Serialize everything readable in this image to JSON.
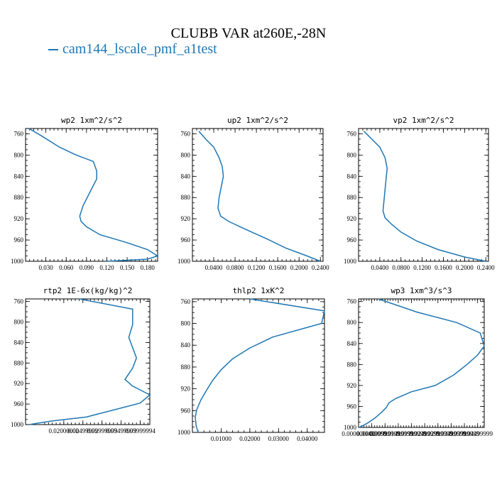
{
  "figure": {
    "title": "CLUBB VAR at260E,-28N",
    "legend": "cam144_lscale_pmf_a1test",
    "line_color": "#1f77b4"
  },
  "chart_data": [
    {
      "type": "line",
      "title": "wp2  1xm^2/s^2",
      "xlim": [
        0.0,
        0.195
      ],
      "ylim": [
        1000,
        750
      ],
      "xticks": [
        0.03,
        0.06,
        0.09,
        0.12,
        0.15,
        0.18
      ],
      "xtick_labels": [
        "0.030",
        "0.060",
        "0.090",
        "0.120",
        "0.150",
        "0.180"
      ],
      "yticks": [
        760,
        800,
        840,
        880,
        920,
        960,
        1000
      ],
      "ytick_labels": [
        "760",
        "800",
        "840",
        "880",
        "920",
        "960",
        "1000"
      ],
      "x": [
        0.005,
        0.025,
        0.05,
        0.075,
        0.1,
        0.105,
        0.105,
        0.095,
        0.085,
        0.08,
        0.082,
        0.09,
        0.11,
        0.15,
        0.18,
        0.195,
        0.18,
        0.12
      ],
      "y": [
        750,
        765,
        785,
        800,
        812,
        830,
        845,
        870,
        895,
        915,
        925,
        935,
        950,
        965,
        978,
        990,
        996,
        1000
      ]
    },
    {
      "type": "line",
      "title": "up2  1xm^2/s^2",
      "xlim": [
        0.0,
        0.245
      ],
      "ylim": [
        1000,
        750
      ],
      "xticks": [
        0.04,
        0.08,
        0.12,
        0.16,
        0.2,
        0.24
      ],
      "xtick_labels": [
        "0.0400",
        "0.0800",
        "0.1200",
        "0.1600",
        "0.2000",
        "0.2400"
      ],
      "yticks": [
        760,
        800,
        840,
        880,
        920,
        960,
        1000
      ],
      "ytick_labels": [
        "760",
        "800",
        "840",
        "880",
        "920",
        "960",
        "1000"
      ],
      "x": [
        0.012,
        0.025,
        0.04,
        0.05,
        0.056,
        0.058,
        0.054,
        0.05,
        0.048,
        0.053,
        0.068,
        0.1,
        0.14,
        0.175,
        0.215,
        0.24
      ],
      "y": [
        755,
        770,
        785,
        805,
        822,
        840,
        860,
        880,
        900,
        915,
        925,
        940,
        958,
        975,
        990,
        1000
      ]
    },
    {
      "type": "line",
      "title": "vp2  1xm^2/s^2",
      "xlim": [
        0.0,
        0.245
      ],
      "ylim": [
        1000,
        750
      ],
      "xticks": [
        0.04,
        0.08,
        0.12,
        0.16,
        0.2,
        0.24
      ],
      "xtick_labels": [
        "0.0400",
        "0.0800",
        "0.1200",
        "0.1600",
        "0.2000",
        "0.2400"
      ],
      "yticks": [
        760,
        800,
        840,
        880,
        920,
        960,
        1000
      ],
      "ytick_labels": [
        "760",
        "800",
        "840",
        "880",
        "920",
        "960",
        "1000"
      ],
      "x": [
        0.01,
        0.025,
        0.04,
        0.05,
        0.054,
        0.052,
        0.05,
        0.048,
        0.046,
        0.05,
        0.062,
        0.08,
        0.11,
        0.15,
        0.2,
        0.24
      ],
      "y": [
        755,
        770,
        785,
        805,
        825,
        845,
        865,
        885,
        905,
        918,
        930,
        945,
        962,
        978,
        992,
        1000
      ]
    },
    {
      "type": "line",
      "title": "rtp2  1E-6x(kg/kg)^2",
      "xlim": [
        0.01,
        0.0425
      ],
      "ylim": [
        1000,
        755
      ],
      "xticks": [
        0.02,
        0.025,
        0.03,
        0.035,
        0.04
      ],
      "xtick_labels": [
        "0.02000000",
        "0.02499999",
        "0.02999999",
        "0.03499999",
        "0.03999994"
      ],
      "yticks": [
        760,
        800,
        840,
        880,
        920,
        960,
        1000
      ],
      "ytick_labels": [
        "760",
        "800",
        "840",
        "880",
        "920",
        "960",
        "1000"
      ],
      "x": [
        0.024,
        0.038,
        0.038,
        0.037,
        0.038,
        0.039,
        0.038,
        0.036,
        0.038,
        0.0425,
        0.04,
        0.026,
        0.017,
        0.0135,
        0.011
      ],
      "y": [
        755,
        775,
        805,
        830,
        850,
        870,
        890,
        912,
        925,
        942,
        958,
        985,
        993,
        997,
        1000
      ]
    },
    {
      "type": "line",
      "title": "thlp2  1xK^2",
      "xlim": [
        0.0,
        0.046
      ],
      "ylim": [
        1000,
        755
      ],
      "xticks": [
        0.01,
        0.02,
        0.03,
        0.04
      ],
      "xtick_labels": [
        "0.01000",
        "0.02000",
        "0.03000",
        "0.04000"
      ],
      "yticks": [
        760,
        800,
        840,
        880,
        920,
        960,
        1000
      ],
      "ytick_labels": [
        "760",
        "800",
        "840",
        "880",
        "920",
        "960",
        "1000"
      ],
      "x": [
        0.02,
        0.046,
        0.045,
        0.028,
        0.02,
        0.014,
        0.01,
        0.007,
        0.005,
        0.003,
        0.0015,
        0.001,
        0.0013,
        0.002
      ],
      "y": [
        755,
        777,
        800,
        825,
        845,
        865,
        885,
        905,
        922,
        940,
        958,
        973,
        988,
        1000
      ]
    },
    {
      "type": "line",
      "title": "wp3  1xm^3/s^3",
      "xlim": [
        0.0,
        0.0475
      ],
      "ylim": [
        1000,
        755
      ],
      "xticks": [
        0.0,
        0.00499999,
        0.00999999,
        0.01499999,
        0.01999999,
        0.02499999,
        0.02999999,
        0.03499999,
        0.03999999,
        0.04499999
      ],
      "xtick_labels": [
        "0.000000000",
        "0.00499999",
        "0.00999999",
        "0.01499999",
        "0.01999999",
        "0.02499999",
        "0.02999999",
        "0.03499999",
        "0.03999999",
        "0.04499999"
      ],
      "yticks": [
        760,
        800,
        840,
        880,
        920,
        960,
        1000
      ],
      "ytick_labels": [
        "760",
        "800",
        "840",
        "880",
        "920",
        "960",
        "1000"
      ],
      "x": [
        0.0075,
        0.022,
        0.037,
        0.046,
        0.0475,
        0.045,
        0.041,
        0.036,
        0.029,
        0.02,
        0.014,
        0.0115,
        0.0105,
        0.0085,
        0.006,
        0.003,
        0.0003
      ],
      "y": [
        755,
        780,
        800,
        820,
        845,
        862,
        880,
        900,
        920,
        932,
        945,
        953,
        962,
        972,
        983,
        993,
        1000
      ]
    }
  ]
}
